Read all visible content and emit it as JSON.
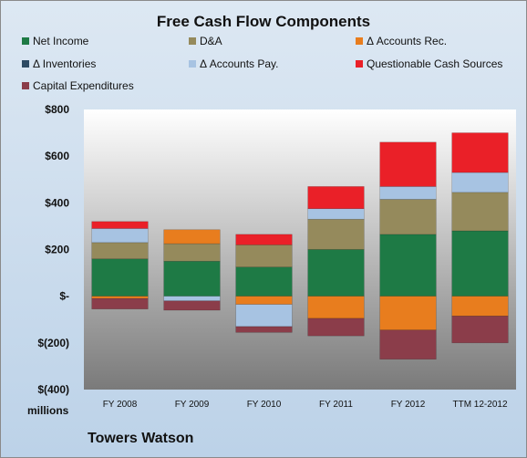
{
  "chart_data": {
    "type": "bar",
    "stacked": true,
    "title": "Free Cash Flow Components",
    "company": "Towers Watson",
    "units": "millions",
    "categories": [
      "FY 2008",
      "FY 2009",
      "FY 2010",
      "FY 2011",
      "FY 2012",
      "TTM 12-2012"
    ],
    "yticks": [
      "$800",
      "$600",
      "$400",
      "$200",
      "$-",
      "$(200)",
      "$(400)"
    ],
    "ylim": [
      -400,
      800
    ],
    "grid": false,
    "legend_position": "top",
    "series": [
      {
        "name": "Net Income",
        "color": "#1e7a45",
        "values": [
          160,
          150,
          125,
          200,
          265,
          280
        ]
      },
      {
        "name": "D&A",
        "color": "#958a5c",
        "values": [
          70,
          75,
          95,
          130,
          150,
          165
        ]
      },
      {
        "name": "Δ Accounts Rec.",
        "color": "#e87d1e",
        "values": [
          -10,
          60,
          -35,
          -95,
          -145,
          -85
        ]
      },
      {
        "name": "Δ Inventories",
        "color": "#2d4a63",
        "values": [
          0,
          0,
          0,
          0,
          0,
          0
        ]
      },
      {
        "name": "Δ Accounts Pay.",
        "color": "#a7c3e2",
        "values": [
          60,
          -20,
          -95,
          45,
          55,
          85
        ]
      },
      {
        "name": "Questionable Cash Sources",
        "color": "#ea2028",
        "values": [
          30,
          0,
          45,
          95,
          190,
          170
        ]
      },
      {
        "name": "Capital Expenditures",
        "color": "#8b3d4a",
        "values": [
          -45,
          -40,
          -25,
          -75,
          -125,
          -115
        ]
      }
    ]
  }
}
